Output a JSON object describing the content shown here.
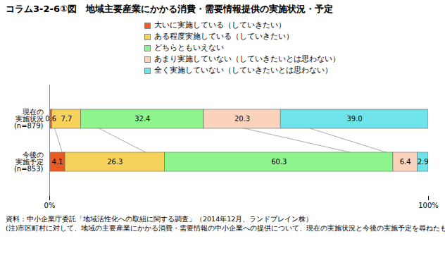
{
  "chart_data": {
    "type": "bar",
    "title": "コラム3-2-6①図　地域主要産業にかかる消費・需要情報提供の実施状況・予定",
    "orientation": "horizontal",
    "stacked": true,
    "data_labels": true,
    "grid": false,
    "legend": "top",
    "categories": [
      "現在の\n実施状況\n(n=879)",
      "今後の\n実施予定\n(n=853)"
    ],
    "series": [
      {
        "name": "大いに実施している（していきたい）",
        "color": "#ec5a24",
        "values": [
          0.6,
          4.1
        ],
        "value_labels": [
          "0.6",
          "4.1"
        ]
      },
      {
        "name": "ある程度実施している（していきたい）",
        "color": "#f7d25a",
        "values": [
          7.7,
          26.3
        ],
        "value_labels": [
          "7.7",
          "26.3"
        ]
      },
      {
        "name": "どちらともいえない",
        "color": "#8ef58e",
        "values": [
          32.4,
          60.3
        ],
        "value_labels": [
          "32.4",
          "60.3"
        ]
      },
      {
        "name": "あまり実施していない（していきたいとは思わない）",
        "color": "#fbd3bd",
        "values": [
          20.3,
          6.4
        ],
        "value_labels": [
          "20.3",
          "6.4"
        ]
      },
      {
        "name": "全く実施していない（していきたいとは思わない）",
        "color": "#6fe3ea",
        "values": [
          39.0,
          2.9
        ],
        "value_labels": [
          "39.0",
          "2.9"
        ]
      }
    ],
    "xlim": [
      0,
      100
    ],
    "xticks": [
      {
        "value": 0,
        "label": "0%"
      },
      {
        "value": 100,
        "label": "100%"
      }
    ],
    "source": "資料：中小企業庁委託「地域活性化への取組に関する調査」（2014年12月、ランドブレイン株）",
    "note": "(注)市区町村に対して、地域の主要産業にかかる消費・需要情報の中小企業への提供について、現在の実施状況と今後の実施予定を尋ねたもの。"
  }
}
